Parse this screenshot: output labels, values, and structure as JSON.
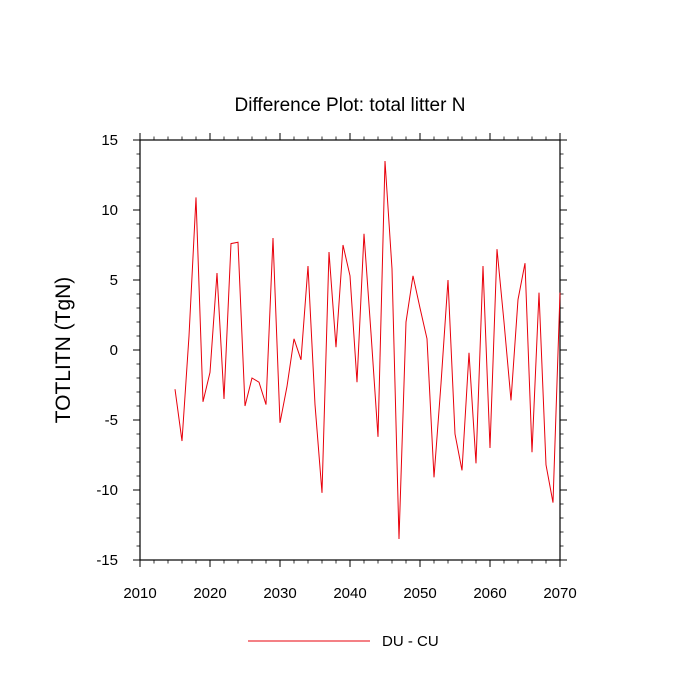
{
  "chart_data": {
    "type": "line",
    "title": "Difference Plot: total litter N",
    "xlabel": "",
    "ylabel": "TOTLITN  (TgN)",
    "xlim": [
      2010,
      2070
    ],
    "ylim": [
      -15,
      15
    ],
    "xticks": [
      2010,
      2020,
      2030,
      2040,
      2050,
      2060,
      2070
    ],
    "yticks": [
      -15,
      -10,
      -5,
      0,
      5,
      10,
      15
    ],
    "grid": false,
    "legend_position": "bottom-center",
    "series": [
      {
        "name": "DU - CU",
        "color": "#e8000b",
        "x": [
          2015,
          2016,
          2017,
          2018,
          2019,
          2020,
          2021,
          2022,
          2023,
          2024,
          2025,
          2026,
          2027,
          2028,
          2029,
          2030,
          2031,
          2032,
          2033,
          2034,
          2035,
          2036,
          2037,
          2038,
          2039,
          2040,
          2041,
          2042,
          2043,
          2044,
          2045,
          2046,
          2047,
          2048,
          2049,
          2050,
          2051,
          2052,
          2053,
          2054,
          2055,
          2056,
          2057,
          2058,
          2059,
          2060,
          2061,
          2062,
          2063,
          2064,
          2065,
          2066,
          2067,
          2068,
          2069,
          2070
        ],
        "values": [
          -2.8,
          -6.5,
          1.0,
          10.9,
          -3.7,
          -1.6,
          5.5,
          -3.5,
          7.6,
          7.7,
          -4.0,
          -2.0,
          -2.3,
          -3.9,
          8.0,
          -5.2,
          -2.6,
          0.8,
          -0.7,
          6.0,
          -3.9,
          -10.2,
          7.0,
          0.2,
          7.5,
          5.3,
          -2.3,
          8.3,
          1.2,
          -6.2,
          13.5,
          5.8,
          -13.5,
          2.0,
          5.3,
          3.0,
          0.8,
          -9.1,
          -2.4,
          5.0,
          -6.0,
          -8.6,
          -0.2,
          -8.1,
          6.0,
          -7.0,
          7.2,
          2.0,
          -3.6,
          3.6,
          6.2,
          -7.3,
          4.1,
          -8.2,
          -10.9,
          4.1
        ]
      }
    ]
  }
}
